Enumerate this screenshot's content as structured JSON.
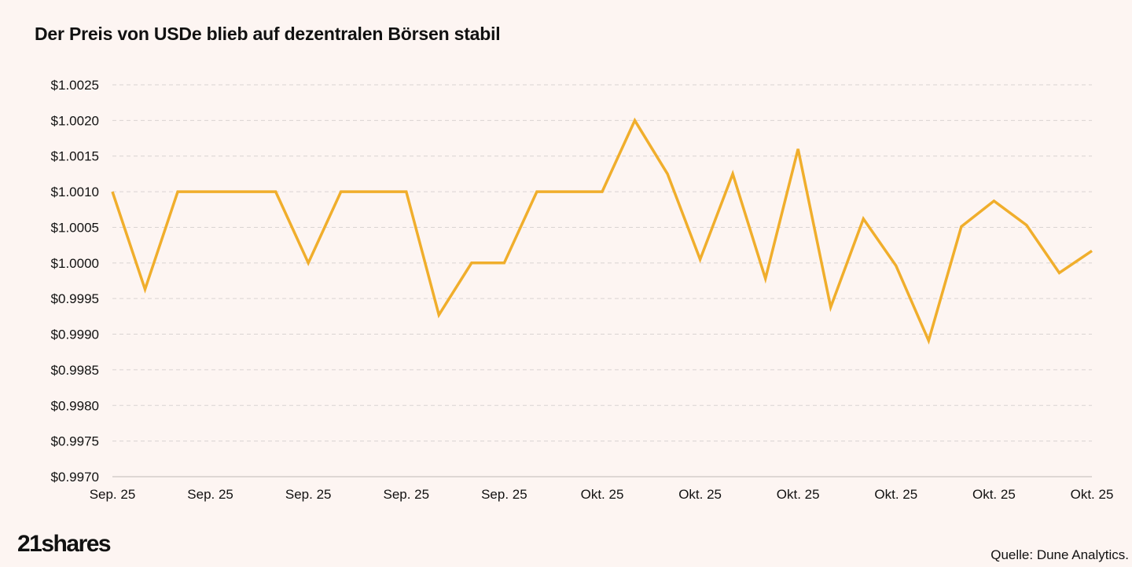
{
  "title": "Der Preis von USDe blieb auf dezentralen Börsen stabil",
  "logo": "21shares",
  "source": "Quelle: Dune Analytics.",
  "colors": {
    "line": "#f0ae2c",
    "grid": "#d9d4d2",
    "background": "#fdf5f2"
  },
  "chart_data": {
    "type": "line",
    "title": "Der Preis von USDe blieb auf dezentralen Börsen stabil",
    "xlabel": "",
    "ylabel": "",
    "ylim": [
      0.997,
      1.0025
    ],
    "ytick_step": 0.0005,
    "grid": true,
    "xtick_labels": [
      "Sep. 25",
      "Sep. 25",
      "Sep. 25",
      "Sep. 25",
      "Sep. 25",
      "Okt. 25",
      "Okt. 25",
      "Okt. 25",
      "Okt. 25",
      "Okt. 25",
      "Okt. 25"
    ],
    "xtick_positions": [
      0,
      3,
      6,
      9,
      12,
      15,
      18,
      21,
      24,
      27,
      30
    ],
    "series": [
      {
        "name": "USDe",
        "values": [
          1.001,
          0.99963,
          1.001,
          1.001,
          1.001,
          1.001,
          1.0,
          1.001,
          1.001,
          1.001,
          0.99927,
          1.0,
          1.0,
          1.001,
          1.001,
          1.001,
          1.002,
          1.00125,
          1.00005,
          1.00125,
          0.99978,
          1.0016,
          0.99938,
          1.00062,
          0.99996,
          0.99891,
          1.00051,
          1.00087,
          1.00053,
          0.99986,
          1.00017
        ]
      }
    ]
  }
}
